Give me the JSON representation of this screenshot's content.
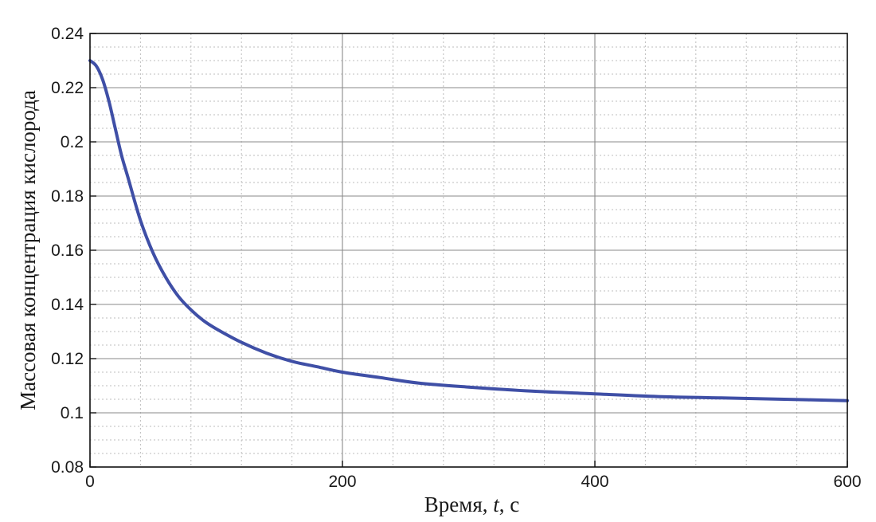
{
  "chart_data": {
    "type": "line",
    "title": "",
    "xlabel_prefix": "Время, ",
    "xlabel_var": "t",
    "xlabel_suffix": ", с",
    "ylabel": "Массовая концентрация кислорода",
    "xlim": [
      0,
      600
    ],
    "ylim": [
      0.08,
      0.24
    ],
    "xticks": [
      0,
      200,
      400,
      600
    ],
    "xtick_labels": [
      "0",
      "200",
      "400",
      "600"
    ],
    "yticks": [
      0.08,
      0.1,
      0.12,
      0.14,
      0.16,
      0.18,
      0.2,
      0.22,
      0.24
    ],
    "ytick_labels": [
      "0.08",
      "0.1",
      "0.12",
      "0.14",
      "0.16",
      "0.18",
      "0.2",
      "0.22",
      "0.24"
    ],
    "grid": true,
    "legend": false,
    "series": [
      {
        "color": "#3f4fa6",
        "x": [
          0,
          5,
          10,
          15,
          20,
          25,
          30,
          40,
          50,
          60,
          70,
          80,
          90,
          100,
          120,
          140,
          160,
          180,
          200,
          230,
          260,
          300,
          350,
          400,
          450,
          500,
          550,
          600
        ],
        "y": [
          0.23,
          0.228,
          0.223,
          0.215,
          0.205,
          0.195,
          0.187,
          0.171,
          0.159,
          0.15,
          0.143,
          0.138,
          0.134,
          0.131,
          0.126,
          0.122,
          0.119,
          0.117,
          0.115,
          0.113,
          0.111,
          0.1095,
          0.108,
          0.107,
          0.106,
          0.1055,
          0.105,
          0.1045
        ]
      }
    ]
  }
}
